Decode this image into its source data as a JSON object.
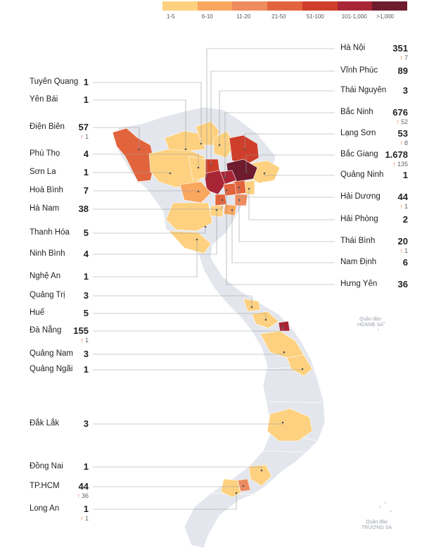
{
  "legend": [
    {
      "label": "1-5",
      "color": "#fdd17f"
    },
    {
      "label": "6-10",
      "color": "#f9a65e"
    },
    {
      "label": "11-20",
      "color": "#ee8c5f"
    },
    {
      "label": "21-50",
      "color": "#e2643c"
    },
    {
      "label": "51-100",
      "color": "#cf3e2a"
    },
    {
      "label": "101-1,000",
      "color": "#a82536"
    },
    {
      "label": ">1,000",
      "color": "#6e1b2e"
    }
  ],
  "colors": {
    "land": "#e3e6ec",
    "leader": "#999999",
    "arrow": "#e2643c"
  },
  "provinces_left": [
    {
      "name": "Tuyên Quang",
      "value": "1",
      "delta": ""
    },
    {
      "name": "Yên Bái",
      "value": "1",
      "delta": ""
    },
    {
      "name": "Điện Biên",
      "value": "57",
      "delta": "1"
    },
    {
      "name": "Phú Thọ",
      "value": "4",
      "delta": ""
    },
    {
      "name": "Sơn La",
      "value": "1",
      "delta": ""
    },
    {
      "name": "Hoà Bình",
      "value": "7",
      "delta": ""
    },
    {
      "name": "Hà Nam",
      "value": "38",
      "delta": ""
    },
    {
      "name": "Thanh Hóa",
      "value": "5",
      "delta": ""
    },
    {
      "name": "Ninh Bình",
      "value": "4",
      "delta": ""
    },
    {
      "name": "Nghệ An",
      "value": "1",
      "delta": ""
    },
    {
      "name": "Quảng Trị",
      "value": "3",
      "delta": ""
    },
    {
      "name": "Huế",
      "value": "5",
      "delta": ""
    },
    {
      "name": "Đà Nẵng",
      "value": "155",
      "delta": "1"
    },
    {
      "name": "Quảng Nam",
      "value": "3",
      "delta": ""
    },
    {
      "name": "Quảng Ngãi",
      "value": "1",
      "delta": ""
    },
    {
      "name": "Đắk Lắk",
      "value": "3",
      "delta": ""
    },
    {
      "name": "Đồng Nai",
      "value": "1",
      "delta": ""
    },
    {
      "name": "TP.HCM",
      "value": "44",
      "delta": "36"
    },
    {
      "name": "Long An",
      "value": "1",
      "delta": "1"
    }
  ],
  "provinces_right": [
    {
      "name": "Hà Nội",
      "value": "351",
      "delta": "7"
    },
    {
      "name": "Vĩnh Phúc",
      "value": "89",
      "delta": ""
    },
    {
      "name": "Thái Nguyên",
      "value": "3",
      "delta": ""
    },
    {
      "name": "Bắc Ninh",
      "value": "676",
      "delta": "52"
    },
    {
      "name": "Lạng Sơn",
      "value": "53",
      "delta": "8"
    },
    {
      "name": "Bắc Giang",
      "value": "1.678",
      "delta": "135"
    },
    {
      "name": "Quảng Ninh",
      "value": "1",
      "delta": ""
    },
    {
      "name": "Hải Dương",
      "value": "44",
      "delta": "1"
    },
    {
      "name": "Hải Phòng",
      "value": "2",
      "delta": ""
    },
    {
      "name": "Thái Bình",
      "value": "20",
      "delta": "1"
    },
    {
      "name": "Nam Định",
      "value": "6",
      "delta": ""
    },
    {
      "name": "Hưng Yên",
      "value": "36",
      "delta": ""
    }
  ],
  "islands": {
    "hoang_sa": [
      "Quần đảo",
      "HOÀNG SA"
    ],
    "truong_sa": [
      "Quần đảo",
      "TRƯỜNG SA"
    ]
  }
}
